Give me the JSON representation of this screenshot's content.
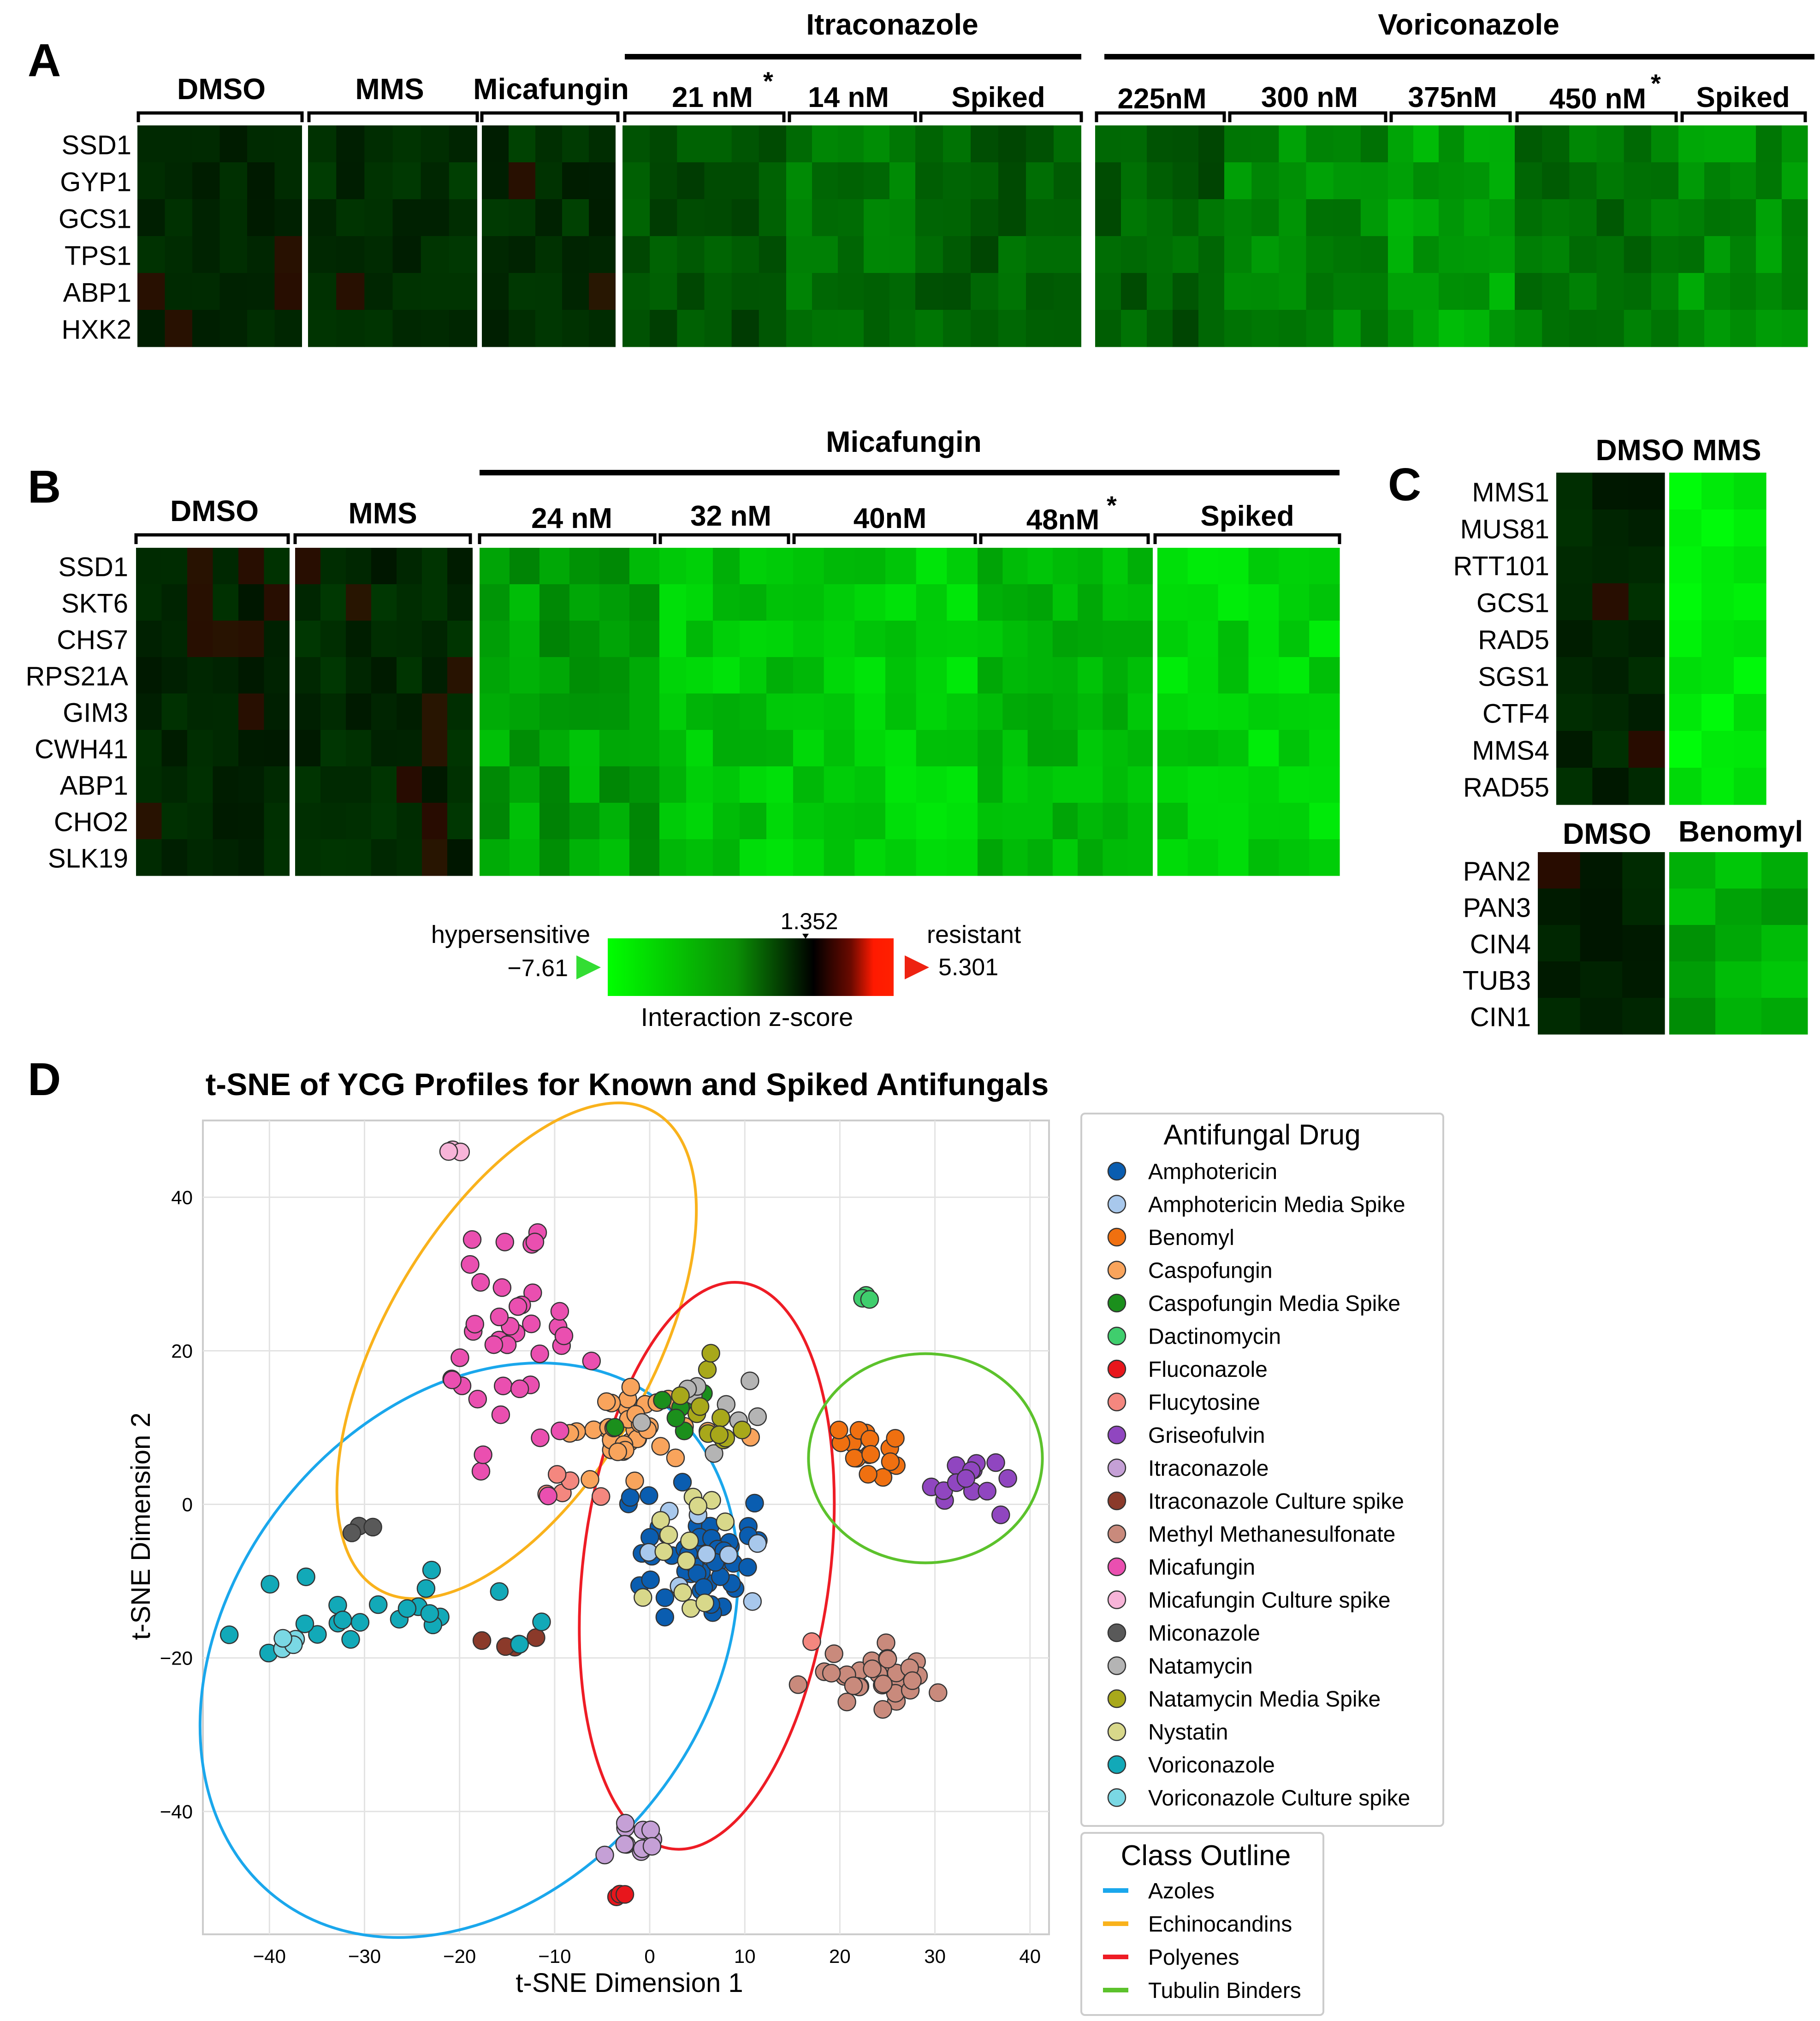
{
  "panel_labels": {
    "a": "A",
    "b": "B",
    "c": "C",
    "d": "D"
  },
  "colors": {
    "dark": "#0c1a0b",
    "bright": "#00ff00",
    "red": "#ff1a00",
    "ellipse_azoles": "#1aa7ec",
    "ellipse_echino": "#f9b21c",
    "ellipse_polyenes": "#ee1c25",
    "ellipse_tubulin": "#5cc22c"
  },
  "panel_a": {
    "genes": [
      "SSD1",
      "GYP1",
      "GCS1",
      "TPS1",
      "ABP1",
      "HXK2"
    ],
    "groups": {
      "dmso": "DMSO",
      "mms": "MMS",
      "micafungin": "Micafungin"
    },
    "itraconazole": {
      "title": "Itraconazole",
      "conc": [
        "21 nM",
        "14 nM",
        "Spiked"
      ]
    },
    "voriconazole": {
      "title": "Voriconazole",
      "conc": [
        "225nM",
        "300 nM",
        "375nM",
        "450 nM",
        "Spiked"
      ]
    },
    "star": "*"
  },
  "panel_b": {
    "genes": [
      "SSD1",
      "SKT6",
      "CHS7",
      "RPS21A",
      "GIM3",
      "CWH41",
      "ABP1",
      "CHO2",
      "SLK19"
    ],
    "groups": {
      "dmso": "DMSO",
      "mms": "MMS"
    },
    "micafungin": {
      "title": "Micafungin",
      "conc": [
        "24 nM",
        "32 nM",
        "40nM",
        "48nM",
        "Spiked"
      ]
    },
    "star": "*"
  },
  "panel_c": {
    "top_header": "DMSO MMS",
    "top_genes": [
      "MMS1",
      "MUS81",
      "RTT101",
      "GCS1",
      "RAD5",
      "SGS1",
      "CTF4",
      "MMS4",
      "RAD55"
    ],
    "bottom_dmso": "DMSO",
    "bottom_treat": "Benomyl",
    "bottom_genes": [
      "PAN2",
      "PAN3",
      "CIN4",
      "TUB3",
      "CIN1"
    ]
  },
  "colorbar": {
    "left_label": "hypersensitive",
    "right_label": "resistant",
    "min": "−7.61",
    "max": "5.301",
    "mid": "1.352",
    "title": "Interaction z-score"
  },
  "chart_data": {
    "type": "scatter",
    "title": "t-SNE of YCG Profiles for Known and Spiked Antifungals",
    "xlabel": "t-SNE Dimension 1",
    "ylabel": "t-SNE Dimension 2",
    "xlim": [
      -47,
      42
    ],
    "ylim": [
      -56,
      50
    ],
    "xticks": [
      -40,
      -30,
      -20,
      -10,
      0,
      10,
      20,
      30,
      40
    ],
    "yticks": [
      40,
      20,
      0,
      -20,
      -40
    ],
    "xtick_labels": [
      "−40",
      "−30",
      "−20",
      "−10",
      "0",
      "10",
      "20",
      "30",
      "40"
    ],
    "ytick_labels": [
      "40",
      "20",
      "0",
      "−20",
      "−40"
    ],
    "grid": true,
    "legend_title": "Antifungal Drug",
    "series": [
      {
        "name": "Amphotericin",
        "color": "#0a5db0",
        "clusters": [
          [
            5,
            -7,
            5,
            8,
            52
          ]
        ]
      },
      {
        "name": "Amphotericin Media Spike",
        "color": "#a8c8ec",
        "clusters": [
          [
            6,
            -5,
            6,
            7,
            8
          ]
        ]
      },
      {
        "name": "Benomyl",
        "color": "#f07010",
        "clusters": [
          [
            23,
            7,
            5,
            4,
            16
          ]
        ]
      },
      {
        "name": "Caspofungin",
        "color": "#f9a45c",
        "clusters": [
          [
            -2,
            10,
            7,
            6,
            40
          ]
        ]
      },
      {
        "name": "Caspofungin Media Spike",
        "color": "#1b8f1c",
        "clusters": [
          [
            0,
            11,
            8,
            4,
            7
          ]
        ]
      },
      {
        "name": "Dactinomycin",
        "color": "#3fce6d",
        "clusters": [
          [
            22.5,
            27,
            0.6,
            0.6,
            3
          ]
        ]
      },
      {
        "name": "Fluconazole",
        "color": "#e8161c",
        "clusters": [
          [
            -3,
            -51,
            0.6,
            0.6,
            3
          ]
        ]
      },
      {
        "name": "Flucytosine",
        "color": "#f4877f",
        "clusters": [
          [
            -10,
            3,
            2,
            2,
            4
          ],
          [
            -5,
            1,
            1,
            1,
            1
          ],
          [
            17,
            -18,
            0.5,
            0.5,
            1
          ]
        ]
      },
      {
        "name": "Griseofulvin",
        "color": "#9046c0",
        "clusters": [
          [
            33,
            3,
            4,
            3,
            14
          ]
        ]
      },
      {
        "name": "Itraconazole",
        "color": "#c5a0d6",
        "clusters": [
          [
            -2,
            -44,
            3,
            3,
            11
          ]
        ]
      },
      {
        "name": "Itraconazole Culture spike",
        "color": "#8b3a2a",
        "clusters": [
          [
            -16,
            -18,
            3,
            1.5,
            5
          ]
        ]
      },
      {
        "name": "Methyl Methanesulfonate",
        "color": "#c98a7c",
        "clusters": [
          [
            24,
            -22,
            6,
            3,
            34
          ]
        ]
      },
      {
        "name": "Micafungin",
        "color": "#ea4fb0",
        "clusters": [
          [
            -14,
            22,
            6,
            17,
            40
          ]
        ]
      },
      {
        "name": "Micafungin Culture spike",
        "color": "#f7b4d8",
        "clusters": [
          [
            -20.5,
            46,
            1,
            0.7,
            3
          ]
        ]
      },
      {
        "name": "Miconazole",
        "color": "#595959",
        "clusters": [
          [
            -30,
            -3,
            1,
            1,
            3
          ]
        ]
      },
      {
        "name": "Natamycin",
        "color": "#b4b4b4",
        "clusters": [
          [
            8,
            13,
            4,
            5,
            9
          ]
        ]
      },
      {
        "name": "Natamycin Media Spike",
        "color": "#a8a81a",
        "clusters": [
          [
            6,
            11,
            3,
            5,
            11
          ]
        ]
      },
      {
        "name": "Nystatin",
        "color": "#d8d88a",
        "clusters": [
          [
            3,
            -8,
            6,
            12,
            13
          ]
        ]
      },
      {
        "name": "Voriconazole",
        "color": "#12a9b8",
        "clusters": [
          [
            -27,
            -15,
            14,
            5,
            23
          ]
        ]
      },
      {
        "name": "Voriconazole Culture spike",
        "color": "#7ad8e4",
        "clusters": [
          [
            -38,
            -18,
            1,
            1.5,
            4
          ]
        ]
      }
    ],
    "outline_legend_title": "Class Outline",
    "outlines": [
      {
        "name": "Azoles",
        "color": "#1aa7ec",
        "cx": -19,
        "cy": -19,
        "rx": 33,
        "ry": 25,
        "angle": -52
      },
      {
        "name": "Echinocandins",
        "color": "#f9b21c",
        "cx": -14,
        "cy": 20,
        "rx": 29,
        "ry": 14,
        "angle": -60
      },
      {
        "name": "Polyenes",
        "color": "#ee1c25",
        "cx": 6,
        "cy": -8,
        "rx": 30,
        "ry": 13,
        "angle": -83
      },
      {
        "name": "Tubulin Binders",
        "color": "#5cc22c",
        "cx": 29,
        "cy": 6,
        "rx": 12.3,
        "ry": 11,
        "angle": 0
      }
    ]
  }
}
